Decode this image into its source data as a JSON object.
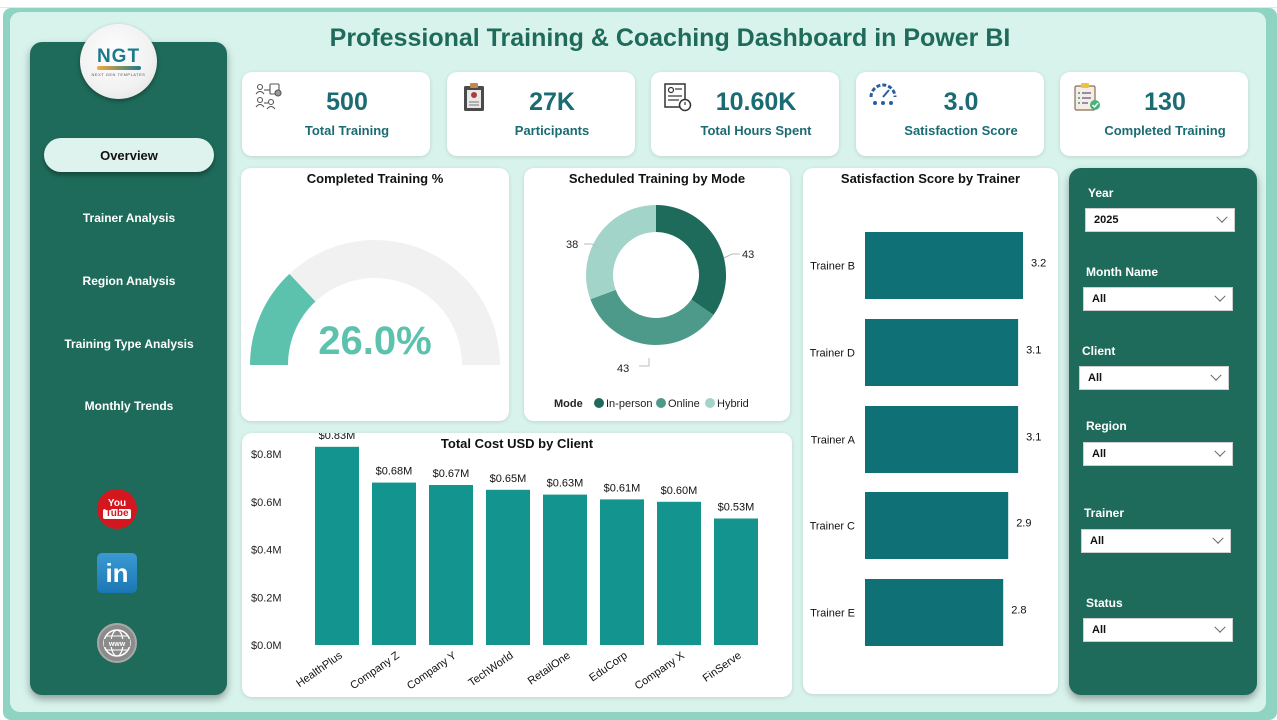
{
  "header": {
    "title": "Professional Training & Coaching Dashboard in Power BI"
  },
  "logo": {
    "text": "NGT",
    "subtitle": "NEXT GEN TEMPLATES"
  },
  "sidebar": {
    "items": [
      {
        "label": "Overview",
        "active": true
      },
      {
        "label": "Trainer Analysis",
        "active": false
      },
      {
        "label": "Region Analysis",
        "active": false
      },
      {
        "label": "Training Type Analysis",
        "active": false
      },
      {
        "label": "Monthly Trends",
        "active": false
      }
    ],
    "social": {
      "youtube_top": "You",
      "youtube_bottom": "Tube",
      "linkedin": "in",
      "web": "www"
    }
  },
  "kpis": [
    {
      "value": "500",
      "label": "Total Training",
      "icon": "org-chart-icon"
    },
    {
      "value": "27K",
      "label": "Participants",
      "icon": "clipboard-badge-icon"
    },
    {
      "value": "10.60K",
      "label": "Total Hours Spent",
      "icon": "timesheet-icon"
    },
    {
      "value": "3.0",
      "label": "Satisfaction Score",
      "icon": "speedometer-icon"
    },
    {
      "value": "130",
      "label": "Completed Training",
      "icon": "checklist-icon"
    }
  ],
  "gauge": {
    "title": "Completed Training %",
    "value_label": "26.0%",
    "value": 26.0,
    "fill_color": "#5cc2ae",
    "track_color": "#f2f1f1"
  },
  "donut": {
    "title": "Scheduled Training by Mode",
    "legend_title": "Mode",
    "segments": [
      {
        "label": "In-person",
        "value": 43,
        "color": "#1f6b5b"
      },
      {
        "label": "Online",
        "value": 43,
        "color": "#4e9a8a"
      },
      {
        "label": "Hybrid",
        "value": 38,
        "color": "#a3d4c9"
      }
    ]
  },
  "trainer_chart": {
    "title": "Satisfaction Score by Trainer",
    "bar_color": "#0f7075",
    "bars": [
      {
        "label": "Trainer B",
        "value": 3.2,
        "value_label": "3.2"
      },
      {
        "label": "Trainer D",
        "value": 3.1,
        "value_label": "3.1"
      },
      {
        "label": "Trainer A",
        "value": 3.1,
        "value_label": "3.1"
      },
      {
        "label": "Trainer C",
        "value": 2.9,
        "value_label": "2.9"
      },
      {
        "label": "Trainer E",
        "value": 2.8,
        "value_label": "2.8"
      }
    ]
  },
  "cost_chart": {
    "title": "Total Cost USD by Client",
    "bar_color": "#13948e",
    "y_ticks": [
      "$0.0M",
      "$0.2M",
      "$0.4M",
      "$0.6M",
      "$0.8M"
    ],
    "bars": [
      {
        "label": "HealthPlus",
        "value": 0.83,
        "value_label": "$0.83M"
      },
      {
        "label": "Company Z",
        "value": 0.68,
        "value_label": "$0.68M"
      },
      {
        "label": "Company Y",
        "value": 0.67,
        "value_label": "$0.67M"
      },
      {
        "label": "TechWorld",
        "value": 0.65,
        "value_label": "$0.65M"
      },
      {
        "label": "RetailOne",
        "value": 0.63,
        "value_label": "$0.63M"
      },
      {
        "label": "EduCorp",
        "value": 0.61,
        "value_label": "$0.61M"
      },
      {
        "label": "Company X",
        "value": 0.6,
        "value_label": "$0.60M"
      },
      {
        "label": "FinServe",
        "value": 0.53,
        "value_label": "$0.53M"
      }
    ]
  },
  "slicers": [
    {
      "label": "Year",
      "value": "2025"
    },
    {
      "label": "Month Name",
      "value": "All"
    },
    {
      "label": "Client",
      "value": "All"
    },
    {
      "label": "Region",
      "value": "All"
    },
    {
      "label": "Trainer",
      "value": "All"
    },
    {
      "label": "Status",
      "value": "All"
    }
  ],
  "chart_data": [
    {
      "type": "pie",
      "title": "Scheduled Training by Mode",
      "categories": [
        "In-person",
        "Online",
        "Hybrid"
      ],
      "values": [
        43,
        43,
        38
      ],
      "legend_title": "Mode",
      "legend_position": "bottom"
    },
    {
      "type": "bar",
      "orientation": "horizontal",
      "title": "Satisfaction Score by Trainer",
      "categories": [
        "Trainer B",
        "Trainer D",
        "Trainer A",
        "Trainer C",
        "Trainer E"
      ],
      "values": [
        3.2,
        3.1,
        3.1,
        2.9,
        2.8
      ],
      "xlabel": "",
      "ylabel": ""
    },
    {
      "type": "bar",
      "title": "Total Cost USD by Client",
      "categories": [
        "HealthPlus",
        "Company Z",
        "Company Y",
        "TechWorld",
        "RetailOne",
        "EduCorp",
        "Company X",
        "FinServe"
      ],
      "values": [
        0.83,
        0.68,
        0.67,
        0.65,
        0.63,
        0.61,
        0.6,
        0.53
      ],
      "xlabel": "",
      "ylabel": "",
      "ylim": [
        0,
        0.8
      ],
      "y_ticks": [
        "$0.0M",
        "$0.2M",
        "$0.4M",
        "$0.6M",
        "$0.8M"
      ],
      "grid": false
    },
    {
      "type": "gauge",
      "title": "Completed Training %",
      "value": 26.0,
      "range": [
        0,
        100
      ]
    }
  ]
}
